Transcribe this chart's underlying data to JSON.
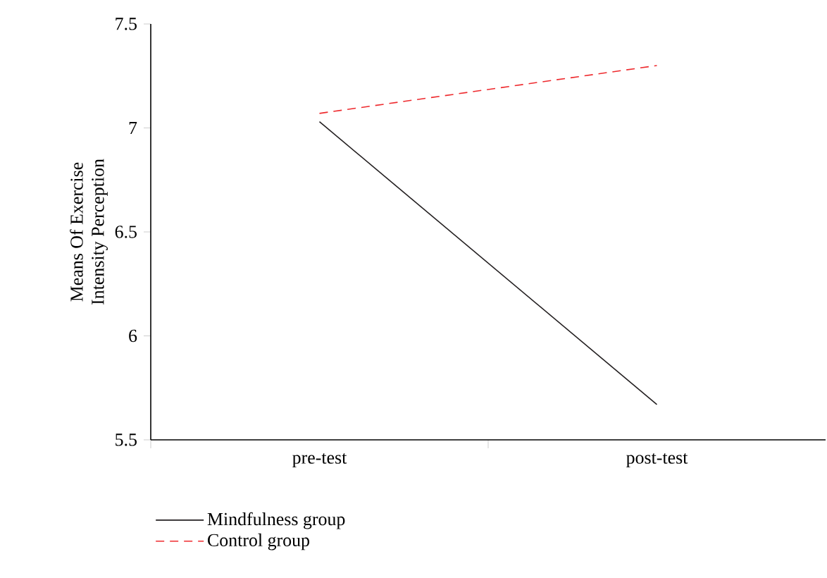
{
  "chart_data": {
    "type": "line",
    "ylabel": "Means Of Exercise\nIntensity Perception",
    "categories": [
      "pre-test",
      "post-test"
    ],
    "series": [
      {
        "name": "Mindfulness group",
        "color": "#231f20",
        "line_style": "solid",
        "values": [
          7.03,
          5.67
        ]
      },
      {
        "name": "Control group",
        "color": "#ee2a2e",
        "line_style": "dashed",
        "values": [
          7.07,
          7.3
        ]
      }
    ],
    "ylim": [
      5.5,
      7.5
    ],
    "yticks": [
      5.5,
      6,
      6.5,
      7,
      7.5
    ],
    "legend": "bottom left",
    "grid": false,
    "marker": "none"
  }
}
